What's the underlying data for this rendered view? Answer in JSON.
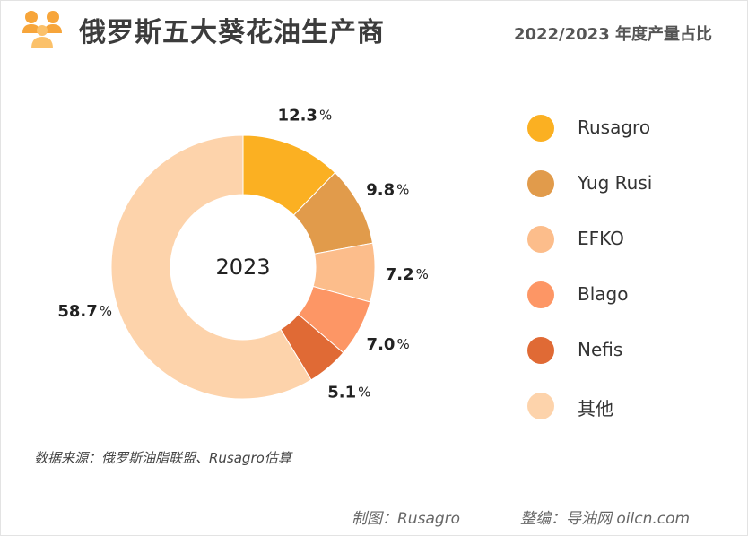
{
  "header": {
    "icon": "people-group-icon",
    "title": "俄罗斯五大葵花油生产商",
    "subtitle": "2022/2023 年度产量占比"
  },
  "chart_data": {
    "type": "pie",
    "center_label": "2023",
    "labels": [
      "Rusagro",
      "Yug Rusi",
      "EFKO",
      "Blago",
      "Nefis",
      "其他"
    ],
    "values": [
      12.3,
      9.8,
      7.2,
      7.0,
      5.1,
      58.7
    ],
    "value_labels": [
      "12.3",
      "9.8",
      "7.2",
      "7.0",
      "5.1",
      "58.7"
    ],
    "unit": "%",
    "colors": [
      "#fbb022",
      "#e19b4b",
      "#fcbd8b",
      "#fd9665",
      "#e06a35",
      "#fdd3ab"
    ],
    "legend_position": "right"
  },
  "footer": {
    "source": "数据来源：俄罗斯油脂联盟、Rusagro估算",
    "credit_map": "制图：Rusagro",
    "credit_edit": "整编：导油网 oilcn.com"
  }
}
